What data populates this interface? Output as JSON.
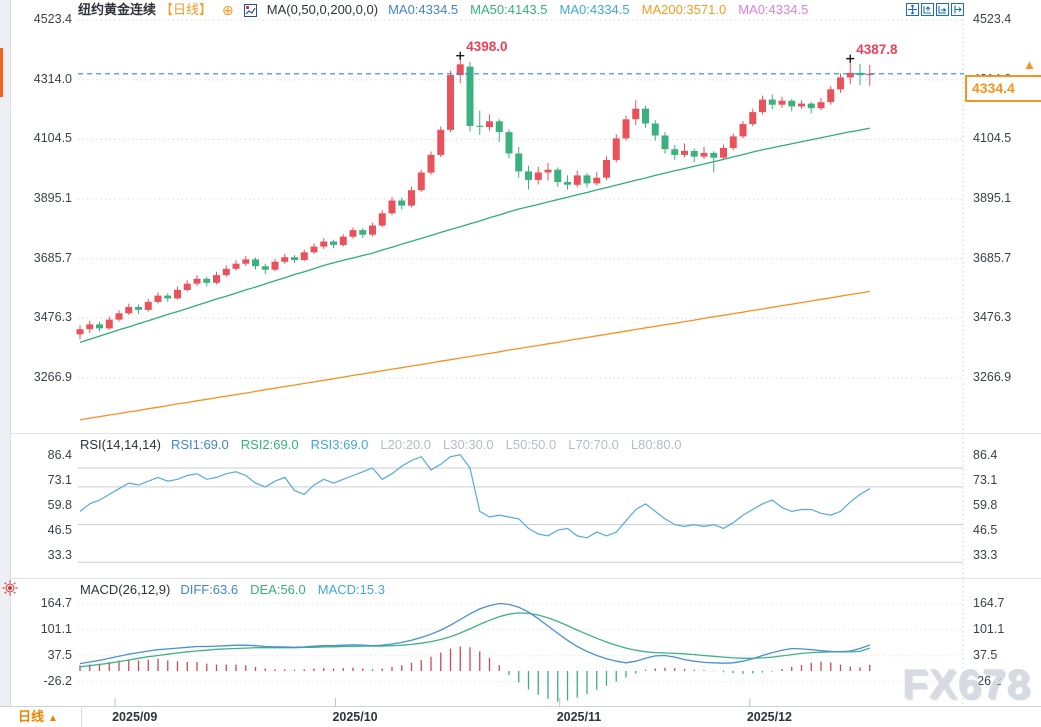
{
  "window": {
    "watermark": "FX678"
  },
  "header": {
    "title": "纽约黄金连续",
    "period_tag": "【日线】",
    "indicator_label": "MA(0,50,0,200,0,0)",
    "ma_items": [
      {
        "label": "MA0:4334.5",
        "color": "#4285c8"
      },
      {
        "label": "MA50:4143.5",
        "color": "#35b179"
      },
      {
        "label": "MA0:4334.5",
        "color": "#3fa8d8"
      },
      {
        "label": "MA200:3571.0",
        "color": "#f59a23"
      },
      {
        "label": "MA0:4334.5",
        "color": "#e080dd"
      }
    ]
  },
  "rsi_header": {
    "label": "RSI(14,14,14)",
    "items": [
      {
        "label": "RSI1:69.0",
        "color": "#4285c8"
      },
      {
        "label": "RSI2:69.0",
        "color": "#35b179"
      },
      {
        "label": "RSI3:69.0",
        "color": "#3fa8d8"
      },
      {
        "label": "L20:20.0",
        "color": "#b6bcc4"
      },
      {
        "label": "L30:30.0",
        "color": "#b6bcc4"
      },
      {
        "label": "L50:50.0",
        "color": "#b6bcc4"
      },
      {
        "label": "L70:70.0",
        "color": "#b6bcc4"
      },
      {
        "label": "L80:80.0",
        "color": "#b6bcc4"
      }
    ]
  },
  "macd_header": {
    "label": "MACD(26,12,9)",
    "items": [
      {
        "label": "DIFF:63.6",
        "color": "#4285c8"
      },
      {
        "label": "DEA:56.0",
        "color": "#35b179"
      },
      {
        "label": "MACD:15.3",
        "color": "#3fa8d8"
      }
    ]
  },
  "price_tag": {
    "value": "4334.4",
    "arrow": "▲"
  },
  "bottom_bar": {
    "period_label": "日线",
    "arrow": "▲"
  },
  "chart_data": {
    "type": "candlestick",
    "title": "纽约黄金连续 日线 (NY Gold Continuous, Daily)",
    "last_price": 4334.4,
    "price_axis_ticks": [
      4523.4,
      4314.0,
      4104.5,
      3895.1,
      3685.7,
      3476.3,
      3266.9
    ],
    "rsi_axis_ticks": [
      86.4,
      73.1,
      59.8,
      46.5,
      33.3
    ],
    "rsi_levels": [
      80,
      70,
      50,
      30
    ],
    "macd_axis_ticks": [
      164.7,
      101.1,
      37.5,
      -26.2
    ],
    "x_ticks": [
      {
        "label": "2025/09",
        "i": 3.6
      },
      {
        "label": "2025/10",
        "i": 26.2
      },
      {
        "label": "2025/11",
        "i": 49.2
      },
      {
        "label": "2025/12",
        "i": 68.7
      }
    ],
    "markers": [
      {
        "i": 39,
        "price": 4398.0,
        "label": "4398.0"
      },
      {
        "i": 79,
        "price": 4387.8,
        "label": "4387.8"
      }
    ],
    "candles": [
      [
        3420,
        3452,
        3402,
        3438
      ],
      [
        3438,
        3468,
        3425,
        3455
      ],
      [
        3455,
        3464,
        3430,
        3441
      ],
      [
        3441,
        3482,
        3436,
        3472
      ],
      [
        3472,
        3505,
        3465,
        3494
      ],
      [
        3494,
        3528,
        3488,
        3516
      ],
      [
        3516,
        3525,
        3492,
        3506
      ],
      [
        3506,
        3545,
        3500,
        3534
      ],
      [
        3534,
        3568,
        3528,
        3556
      ],
      [
        3556,
        3565,
        3535,
        3546
      ],
      [
        3546,
        3588,
        3542,
        3576
      ],
      [
        3576,
        3610,
        3570,
        3598
      ],
      [
        3598,
        3628,
        3590,
        3615
      ],
      [
        3615,
        3622,
        3588,
        3601
      ],
      [
        3601,
        3640,
        3596,
        3628
      ],
      [
        3628,
        3662,
        3622,
        3650
      ],
      [
        3650,
        3680,
        3644,
        3668
      ],
      [
        3668,
        3695,
        3660,
        3683
      ],
      [
        3683,
        3690,
        3648,
        3659
      ],
      [
        3659,
        3668,
        3632,
        3647
      ],
      [
        3647,
        3685,
        3642,
        3675
      ],
      [
        3675,
        3702,
        3668,
        3691
      ],
      [
        3691,
        3698,
        3670,
        3681
      ],
      [
        3681,
        3718,
        3676,
        3708
      ],
      [
        3708,
        3740,
        3702,
        3728
      ],
      [
        3728,
        3758,
        3720,
        3746
      ],
      [
        3746,
        3752,
        3722,
        3734
      ],
      [
        3734,
        3772,
        3728,
        3763
      ],
      [
        3763,
        3795,
        3756,
        3786
      ],
      [
        3786,
        3794,
        3758,
        3770
      ],
      [
        3770,
        3812,
        3764,
        3802
      ],
      [
        3802,
        3856,
        3796,
        3845
      ],
      [
        3845,
        3902,
        3838,
        3890
      ],
      [
        3890,
        3900,
        3858,
        3872
      ],
      [
        3872,
        3938,
        3866,
        3926
      ],
      [
        3926,
        3998,
        3920,
        3988
      ],
      [
        3988,
        4062,
        3980,
        4050
      ],
      [
        4050,
        4150,
        4042,
        4138
      ],
      [
        4138,
        4345,
        4130,
        4330
      ],
      [
        4330,
        4398,
        4302,
        4368
      ],
      [
        4360,
        4377,
        4132,
        4152
      ],
      [
        4152,
        4205,
        4120,
        4148
      ],
      [
        4148,
        4192,
        4135,
        4168
      ],
      [
        4168,
        4175,
        4095,
        4130
      ],
      [
        4130,
        4140,
        4038,
        4055
      ],
      [
        4055,
        4078,
        3970,
        3992
      ],
      [
        3992,
        4012,
        3929,
        3962
      ],
      [
        3962,
        4008,
        3946,
        3988
      ],
      [
        3988,
        4022,
        3960,
        3998
      ],
      [
        3998,
        4006,
        3938,
        3955
      ],
      [
        3955,
        3978,
        3928,
        3945
      ],
      [
        3945,
        3995,
        3936,
        3978
      ],
      [
        3978,
        3986,
        3936,
        3950
      ],
      [
        3950,
        3990,
        3942,
        3970
      ],
      [
        3970,
        4045,
        3962,
        4032
      ],
      [
        4032,
        4122,
        4024,
        4108
      ],
      [
        4108,
        4188,
        4100,
        4175
      ],
      [
        4175,
        4242,
        4155,
        4212
      ],
      [
        4212,
        4222,
        4145,
        4160
      ],
      [
        4160,
        4172,
        4100,
        4118
      ],
      [
        4118,
        4130,
        4055,
        4070
      ],
      [
        4070,
        4085,
        4032,
        4050
      ],
      [
        4050,
        4090,
        4042,
        4064
      ],
      [
        4064,
        4072,
        4025,
        4044
      ],
      [
        4044,
        4078,
        4036,
        4057
      ],
      [
        4057,
        4063,
        3988,
        4040
      ],
      [
        4040,
        4086,
        4034,
        4074
      ],
      [
        4074,
        4125,
        4066,
        4115
      ],
      [
        4115,
        4168,
        4108,
        4158
      ],
      [
        4158,
        4212,
        4150,
        4200
      ],
      [
        4200,
        4258,
        4192,
        4244
      ],
      [
        4244,
        4262,
        4210,
        4226
      ],
      [
        4226,
        4254,
        4216,
        4240
      ],
      [
        4240,
        4246,
        4202,
        4220
      ],
      [
        4220,
        4242,
        4212,
        4230
      ],
      [
        4230,
        4236,
        4196,
        4214
      ],
      [
        4214,
        4250,
        4206,
        4235
      ],
      [
        4235,
        4292,
        4226,
        4280
      ],
      [
        4280,
        4336,
        4268,
        4322
      ],
      [
        4322,
        4387.8,
        4298,
        4338
      ],
      [
        4338,
        4370,
        4295,
        4330
      ],
      [
        4330,
        4366,
        4292,
        4334.4
      ]
    ],
    "ma50": [
      3392,
      3403,
      3414,
      3425,
      3436,
      3446,
      3457,
      3468,
      3479,
      3490,
      3500,
      3511,
      3522,
      3533,
      3544,
      3554,
      3565,
      3576,
      3586,
      3597,
      3608,
      3619,
      3630,
      3640,
      3651,
      3662,
      3671,
      3680,
      3688,
      3697,
      3705,
      3716,
      3726,
      3737,
      3747,
      3757,
      3767,
      3778,
      3788,
      3798,
      3808,
      3818,
      3829,
      3839,
      3850,
      3860,
      3868,
      3876,
      3885,
      3893,
      3901,
      3910,
      3918,
      3927,
      3935,
      3944,
      3952,
      3961,
      3969,
      3978,
      3986,
      3994,
      4002,
      4010,
      4018,
      4026,
      4034,
      4043,
      4051,
      4060,
      4068,
      4075,
      4082,
      4089,
      4096,
      4103,
      4110,
      4117,
      4124,
      4131,
      4137,
      4143.5
    ],
    "ma200": [
      3120,
      3126,
      3131,
      3137,
      3142,
      3148,
      3153,
      3159,
      3164,
      3170,
      3176,
      3181,
      3187,
      3192,
      3198,
      3203,
      3209,
      3214,
      3220,
      3226,
      3231,
      3237,
      3242,
      3248,
      3253,
      3259,
      3264,
      3270,
      3276,
      3281,
      3287,
      3292,
      3298,
      3303,
      3309,
      3314,
      3320,
      3326,
      3331,
      3337,
      3342,
      3348,
      3353,
      3359,
      3365,
      3370,
      3376,
      3381,
      3387,
      3392,
      3398,
      3404,
      3409,
      3415,
      3420,
      3426,
      3431,
      3437,
      3443,
      3448,
      3454,
      3459,
      3465,
      3470,
      3476,
      3482,
      3487,
      3493,
      3498,
      3504,
      3509,
      3515,
      3521,
      3526,
      3532,
      3537,
      3543,
      3548,
      3554,
      3560,
      3565,
      3571
    ],
    "rsi": [
      57,
      61,
      63,
      66,
      69,
      72,
      71,
      73,
      75,
      73,
      74,
      76,
      77,
      74,
      75,
      77,
      78,
      76,
      72,
      70,
      73,
      75,
      68,
      66,
      71,
      74,
      72,
      74,
      76,
      78,
      80,
      74,
      77,
      81,
      84,
      86,
      79,
      82,
      86,
      87,
      80,
      57,
      54,
      55,
      54,
      53,
      48,
      45,
      44,
      47,
      48,
      44,
      43,
      46,
      44,
      46,
      52,
      58,
      61,
      57,
      53,
      50,
      49,
      50,
      49,
      50,
      48,
      51,
      55,
      58,
      61,
      63,
      59,
      57,
      58,
      58,
      56,
      55,
      57,
      62,
      66,
      69
    ],
    "macd_diff": [
      18,
      22,
      26,
      31,
      36,
      41,
      45,
      49,
      52,
      54,
      56,
      58,
      60,
      60,
      61,
      62,
      63,
      63,
      62,
      60,
      59,
      59,
      58,
      59,
      61,
      62,
      62,
      63,
      64,
      63,
      62,
      63,
      66,
      70,
      75,
      82,
      90,
      100,
      112,
      126,
      140,
      152,
      160,
      165,
      163,
      156,
      144,
      128,
      110,
      92,
      75,
      60,
      48,
      38,
      30,
      24,
      20,
      24,
      31,
      37,
      38,
      34,
      28,
      24,
      21,
      20,
      19,
      20,
      24,
      30,
      38,
      45,
      51,
      55,
      54,
      52,
      50,
      48,
      47,
      49,
      55,
      63.6
    ],
    "macd_dea": [
      10,
      13,
      16,
      19,
      23,
      27,
      31,
      35,
      38,
      41,
      44,
      47,
      49,
      51,
      53,
      54,
      55,
      56,
      57,
      57,
      57,
      57,
      57,
      58,
      58,
      59,
      59,
      60,
      60,
      61,
      61,
      61,
      62,
      63,
      65,
      68,
      72,
      77,
      84,
      93,
      103,
      114,
      124,
      133,
      139,
      142,
      141,
      137,
      130,
      121,
      111,
      100,
      90,
      80,
      71,
      63,
      56,
      51,
      47,
      45,
      44,
      43,
      42,
      40,
      38,
      36,
      34,
      32,
      31,
      31,
      32,
      34,
      37,
      40,
      43,
      45,
      46,
      47,
      47,
      47,
      48,
      56
    ],
    "macd_hist": [
      14,
      16,
      18,
      22,
      26,
      28,
      26,
      28,
      30,
      26,
      24,
      22,
      22,
      18,
      16,
      16,
      16,
      14,
      10,
      6,
      4,
      4,
      3,
      4,
      6,
      7,
      6,
      7,
      8,
      6,
      4,
      6,
      10,
      14,
      20,
      27,
      35,
      45,
      55,
      60,
      58,
      48,
      32,
      14,
      -10,
      -28,
      -45,
      -58,
      -68,
      -75,
      -72,
      -65,
      -56,
      -46,
      -36,
      -26,
      -16,
      -6,
      3,
      6,
      8,
      7,
      5,
      3,
      2,
      1,
      -3,
      -5,
      -7,
      -6,
      -4,
      -2,
      5,
      10,
      15,
      20,
      23,
      21,
      16,
      11,
      9,
      15.3
    ],
    "colors": {
      "up": "#e9515b",
      "down": "#3ab17e",
      "ma50": "#2fae77",
      "ma200": "#f79120",
      "price_line": "#2a8af0",
      "rsi": "#56aadc",
      "diff": "#4a8fd3",
      "dea": "#3cb384",
      "hist_up": "#cb4758",
      "hist_down": "#3cae7f",
      "marker": "#e8415a"
    }
  }
}
